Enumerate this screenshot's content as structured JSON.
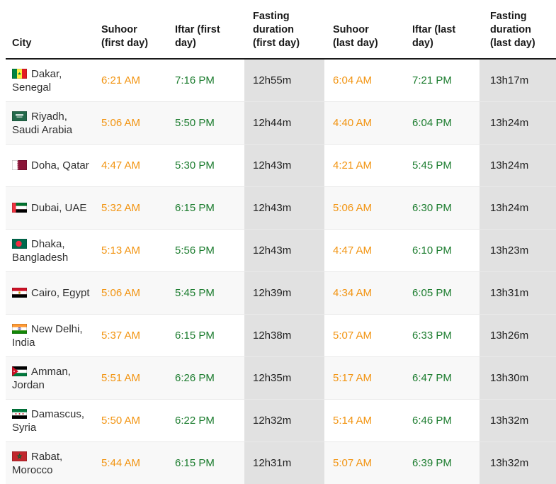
{
  "colors": {
    "suhoor_time": "#F29411",
    "iftar_time": "#1B7C2E",
    "duration_bg": "#E1E1E1",
    "row_stripe": "#F8F8F8",
    "text": "#303030",
    "header_text": "#1A1A1A",
    "row_border": "#E9E9E9",
    "header_border": "#1A1A1A",
    "page_bg": "#FFFFFF"
  },
  "table": {
    "columns": [
      "City",
      "Suhoor (first day)",
      "Iftar (first day)",
      "Fasting duration (first day)",
      "Suhoor (last day)",
      "Iftar (last day)",
      "Fasting duration (last day)"
    ],
    "rows": [
      {
        "city": "Dakar, Senegal",
        "flag": "senegal",
        "suhoor_first": "6:21 AM",
        "iftar_first": "7:16 PM",
        "duration_first": "12h55m",
        "suhoor_last": "6:04 AM",
        "iftar_last": "7:21 PM",
        "duration_last": "13h17m"
      },
      {
        "city": "Riyadh, Saudi Arabia",
        "flag": "saudi-arabia",
        "suhoor_first": "5:06 AM",
        "iftar_first": "5:50 PM",
        "duration_first": "12h44m",
        "suhoor_last": "4:40 AM",
        "iftar_last": "6:04 PM",
        "duration_last": "13h24m"
      },
      {
        "city": "Doha, Qatar",
        "flag": "qatar",
        "suhoor_first": "4:47 AM",
        "iftar_first": "5:30 PM",
        "duration_first": "12h43m",
        "suhoor_last": "4:21 AM",
        "iftar_last": "5:45 PM",
        "duration_last": "13h24m"
      },
      {
        "city": "Dubai, UAE",
        "flag": "uae",
        "suhoor_first": "5:32 AM",
        "iftar_first": "6:15 PM",
        "duration_first": "12h43m",
        "suhoor_last": "5:06 AM",
        "iftar_last": "6:30 PM",
        "duration_last": "13h24m"
      },
      {
        "city": "Dhaka, Bangladesh",
        "flag": "bangladesh",
        "suhoor_first": "5:13 AM",
        "iftar_first": "5:56 PM",
        "duration_first": "12h43m",
        "suhoor_last": "4:47 AM",
        "iftar_last": "6:10 PM",
        "duration_last": "13h23m"
      },
      {
        "city": "Cairo, Egypt",
        "flag": "egypt",
        "suhoor_first": "5:06 AM",
        "iftar_first": "5:45 PM",
        "duration_first": "12h39m",
        "suhoor_last": "4:34 AM",
        "iftar_last": "6:05 PM",
        "duration_last": "13h31m"
      },
      {
        "city": "New Delhi, India",
        "flag": "india",
        "suhoor_first": "5:37 AM",
        "iftar_first": "6:15 PM",
        "duration_first": "12h38m",
        "suhoor_last": "5:07 AM",
        "iftar_last": "6:33 PM",
        "duration_last": "13h26m"
      },
      {
        "city": "Amman, Jordan",
        "flag": "jordan",
        "suhoor_first": "5:51 AM",
        "iftar_first": "6:26 PM",
        "duration_first": "12h35m",
        "suhoor_last": "5:17 AM",
        "iftar_last": "6:47 PM",
        "duration_last": "13h30m"
      },
      {
        "city": "Damascus, Syria",
        "flag": "syria",
        "suhoor_first": "5:50 AM",
        "iftar_first": "6:22 PM",
        "duration_first": "12h32m",
        "suhoor_last": "5:14 AM",
        "iftar_last": "6:46 PM",
        "duration_last": "13h32m"
      },
      {
        "city": "Rabat, Morocco",
        "flag": "morocco",
        "suhoor_first": "5:44 AM",
        "iftar_first": "6:15 PM",
        "duration_first": "12h31m",
        "suhoor_last": "5:07 AM",
        "iftar_last": "6:39 PM",
        "duration_last": "13h32m"
      }
    ]
  }
}
